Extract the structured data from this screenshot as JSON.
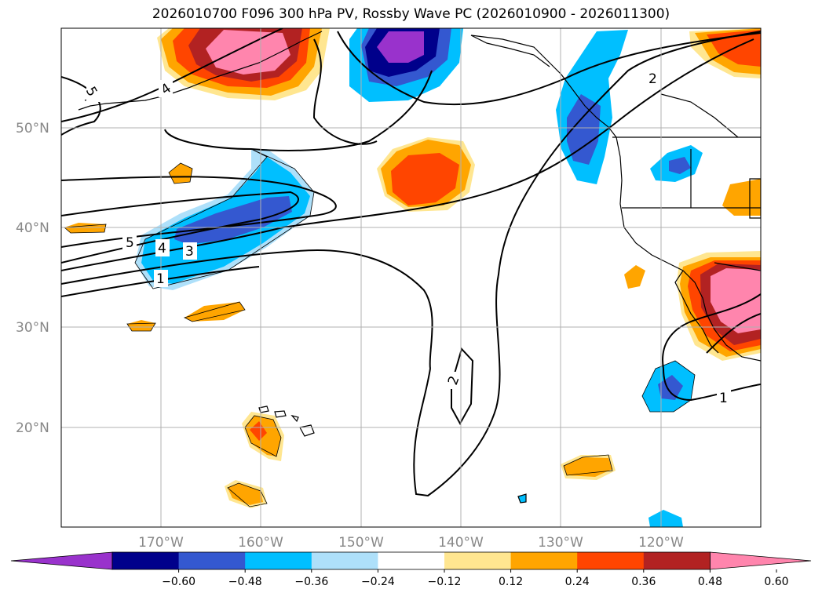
{
  "title": "2026010700 F096 300 hPa PV, Rossby Wave PC (2026010900 - 2026011300)",
  "map": {
    "lat_labels": [
      "50°N",
      "40°N",
      "30°N",
      "20°N"
    ],
    "lon_labels": [
      "170°W",
      "160°W",
      "150°W",
      "140°W",
      "130°W",
      "120°W"
    ],
    "contour_labels": [
      "5",
      "4",
      "3",
      "1",
      "2",
      "2",
      "1",
      "4",
      "5"
    ]
  },
  "colorbar": {
    "ticks": [
      "−0.60",
      "−0.48",
      "−0.36",
      "−0.24",
      "−0.12",
      "0.12",
      "0.24",
      "0.36",
      "0.48",
      "0.60"
    ],
    "colors": [
      "#9932cc",
      "#00008b",
      "#3458d0",
      "#00bfff",
      "#aee0fa",
      "#ffffff",
      "#ffe690",
      "#ffa500",
      "#ff4500",
      "#b22222",
      "#ff85ad"
    ]
  }
}
